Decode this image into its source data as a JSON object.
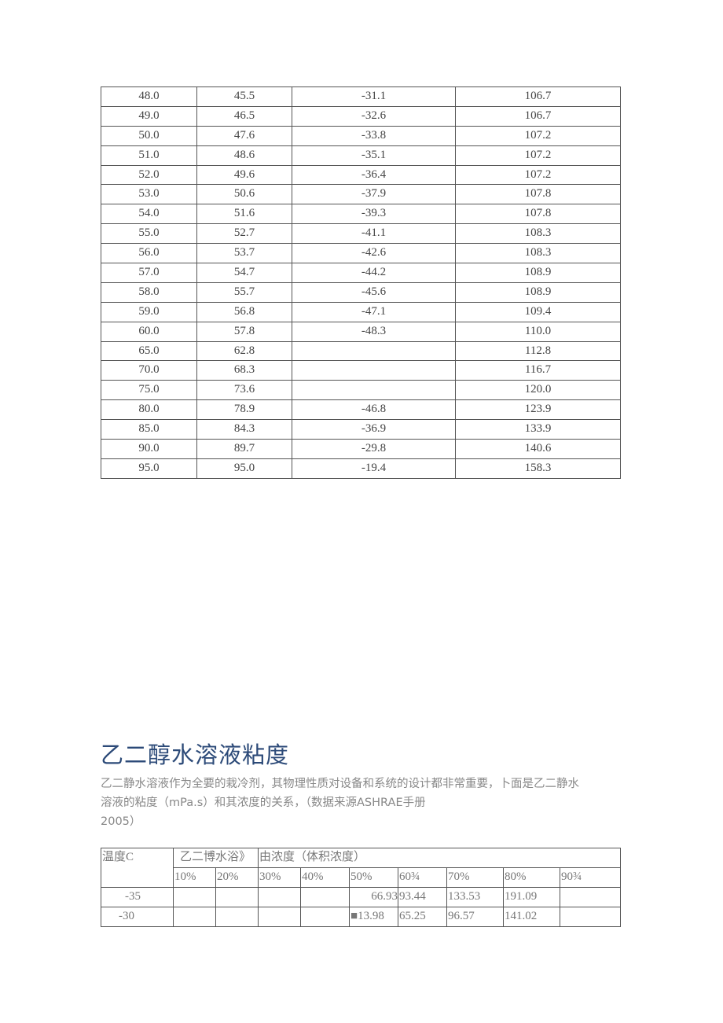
{
  "table1": {
    "rows": [
      [
        "48.0",
        "45.5",
        "-31.1",
        "106.7"
      ],
      [
        "49.0",
        "46.5",
        "-32.6",
        "106.7"
      ],
      [
        "50.0",
        "47.6",
        "-33.8",
        "107.2"
      ],
      [
        "51.0",
        "48.6",
        "-35.1",
        "107.2"
      ],
      [
        "52.0",
        "49.6",
        "-36.4",
        "107.2"
      ],
      [
        "53.0",
        "50.6",
        "-37.9",
        "107.8"
      ],
      [
        "54.0",
        "51.6",
        "-39.3",
        "107.8"
      ],
      [
        "55.0",
        "52.7",
        "-41.1",
        "108.3"
      ],
      [
        "56.0",
        "53.7",
        "-42.6",
        "108.3"
      ],
      [
        "57.0",
        "54.7",
        "-44.2",
        "108.9"
      ],
      [
        "58.0",
        "55.7",
        "-45.6",
        "108.9"
      ],
      [
        "59.0",
        "56.8",
        "-47.1",
        "109.4"
      ],
      [
        "60.0",
        "57.8",
        "-48.3",
        "110.0"
      ],
      [
        "65.0",
        "62.8",
        "",
        "112.8"
      ],
      [
        "70.0",
        "68.3",
        "",
        "116.7"
      ],
      [
        "75.0",
        "73.6",
        "",
        "120.0"
      ],
      [
        "80.0",
        "78.9",
        "-46.8",
        "123.9"
      ],
      [
        "85.0",
        "84.3",
        "-36.9",
        "133.9"
      ],
      [
        "90.0",
        "89.7",
        "-29.8",
        "140.6"
      ],
      [
        "95.0",
        "95.0",
        "-19.4",
        "158.3"
      ]
    ]
  },
  "title": "乙二醇水溶液粘度",
  "paragraph": [
    "乙二静水溶液作为全要的栽冷剂，其物理性质对设备和系统的设计都非常重要，卜面是乙二静水",
    "溶液的粘度（mPa.s）和其浓度的关系，（数据来源ASHRAE手册",
    "2005）"
  ],
  "table2": {
    "header_temp": "温度C",
    "header_group_a": "乙二博水浴》",
    "header_group_b": "由浓度（体积浓度）",
    "concentrations": [
      "10%",
      "20%",
      "30%",
      "40%",
      "50%",
      "60¾",
      "70%",
      "80%",
      "90¾"
    ],
    "rows": [
      {
        "temp": "-35",
        "values": [
          "",
          "",
          "",
          "",
          "66.93",
          "93.44",
          "133.53",
          "191.09",
          ""
        ]
      },
      {
        "temp": "-30",
        "values": [
          "",
          "",
          "",
          "",
          "■13.98",
          "65.25",
          "96.57",
          "141.02",
          ""
        ]
      }
    ]
  }
}
